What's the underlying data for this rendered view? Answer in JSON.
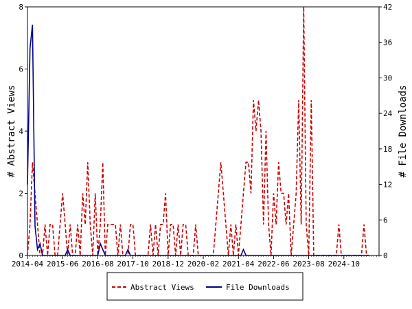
{
  "chart_data": {
    "type": "line",
    "title": "",
    "xlabel": "",
    "ylabel": "# Abstract Views",
    "y2label": "# File Downloads",
    "ylim": [
      0,
      8
    ],
    "y2lim": [
      0,
      42
    ],
    "yticks": [
      0,
      2,
      4,
      6,
      8
    ],
    "y2ticks": [
      0,
      6,
      12,
      18,
      24,
      30,
      36,
      42
    ],
    "x_start": "2014-04",
    "x_end": "2025-12",
    "xticks": [
      "2014-04",
      "2015-06",
      "2016-08",
      "2017-10",
      "2018-12",
      "2020-02",
      "2021-04",
      "2022-06",
      "2023-08",
      "2024-10"
    ],
    "grid": false,
    "legend_position": "bottom",
    "series": [
      {
        "name": "Abstract Views",
        "color": "#cc0000",
        "style": "dashed",
        "axis": "left",
        "points": [
          [
            "2014-04",
            0
          ],
          [
            "2014-05",
            1
          ],
          [
            "2014-06",
            3
          ],
          [
            "2014-07",
            2
          ],
          [
            "2014-08",
            1
          ],
          [
            "2014-09",
            0
          ],
          [
            "2014-10",
            0
          ],
          [
            "2014-11",
            1
          ],
          [
            "2014-12",
            0
          ],
          [
            "2015-01",
            1
          ],
          [
            "2015-02",
            1
          ],
          [
            "2015-03",
            0
          ],
          [
            "2015-04",
            0
          ],
          [
            "2015-05",
            1
          ],
          [
            "2015-06",
            2
          ],
          [
            "2015-07",
            1
          ],
          [
            "2015-08",
            0
          ],
          [
            "2015-09",
            1
          ],
          [
            "2015-10",
            0
          ],
          [
            "2015-11",
            0
          ],
          [
            "2015-12",
            1
          ],
          [
            "2016-01",
            0
          ],
          [
            "2016-02",
            2
          ],
          [
            "2016-03",
            1
          ],
          [
            "2016-04",
            3
          ],
          [
            "2016-05",
            1
          ],
          [
            "2016-06",
            0
          ],
          [
            "2016-07",
            2
          ],
          [
            "2016-08",
            0
          ],
          [
            "2016-09",
            1
          ],
          [
            "2016-10",
            3
          ],
          [
            "2016-11",
            0
          ],
          [
            "2016-12",
            1
          ],
          [
            "2017-01",
            1
          ],
          [
            "2017-02",
            1
          ],
          [
            "2017-03",
            1
          ],
          [
            "2017-04",
            0
          ],
          [
            "2017-05",
            1
          ],
          [
            "2017-06",
            0
          ],
          [
            "2017-07",
            0
          ],
          [
            "2017-08",
            0
          ],
          [
            "2017-09",
            1
          ],
          [
            "2017-10",
            1
          ],
          [
            "2017-11",
            0
          ],
          [
            "2017-12",
            0
          ],
          [
            "2018-01",
            0
          ],
          [
            "2018-02",
            0
          ],
          [
            "2018-03",
            0
          ],
          [
            "2018-04",
            0
          ],
          [
            "2018-05",
            1
          ],
          [
            "2018-06",
            0
          ],
          [
            "2018-07",
            1
          ],
          [
            "2018-08",
            0
          ],
          [
            "2018-09",
            1
          ],
          [
            "2018-10",
            1
          ],
          [
            "2018-11",
            2
          ],
          [
            "2018-12",
            0
          ],
          [
            "2019-01",
            1
          ],
          [
            "2019-02",
            1
          ],
          [
            "2019-03",
            0
          ],
          [
            "2019-04",
            1
          ],
          [
            "2019-05",
            0
          ],
          [
            "2019-06",
            1
          ],
          [
            "2019-07",
            1
          ],
          [
            "2019-08",
            0
          ],
          [
            "2019-09",
            0
          ],
          [
            "2019-10",
            0
          ],
          [
            "2019-11",
            1
          ],
          [
            "2019-12",
            0
          ],
          [
            "2020-01",
            0
          ],
          [
            "2020-02",
            0
          ],
          [
            "2020-03",
            0
          ],
          [
            "2020-04",
            0
          ],
          [
            "2020-05",
            0
          ],
          [
            "2020-06",
            0
          ],
          [
            "2020-07",
            1
          ],
          [
            "2020-08",
            2
          ],
          [
            "2020-09",
            3
          ],
          [
            "2020-10",
            2
          ],
          [
            "2020-11",
            1
          ],
          [
            "2020-12",
            0
          ],
          [
            "2021-01",
            1
          ],
          [
            "2021-02",
            0
          ],
          [
            "2021-03",
            1
          ],
          [
            "2021-04",
            0
          ],
          [
            "2021-05",
            1
          ],
          [
            "2021-06",
            2
          ],
          [
            "2021-07",
            3
          ],
          [
            "2021-08",
            3
          ],
          [
            "2021-09",
            2
          ],
          [
            "2021-10",
            5
          ],
          [
            "2021-11",
            4
          ],
          [
            "2021-12",
            5
          ],
          [
            "2022-01",
            4
          ],
          [
            "2022-02",
            1
          ],
          [
            "2022-03",
            4
          ],
          [
            "2022-04",
            1
          ],
          [
            "2022-05",
            0
          ],
          [
            "2022-06",
            2
          ],
          [
            "2022-07",
            1
          ],
          [
            "2022-08",
            3
          ],
          [
            "2022-09",
            2
          ],
          [
            "2022-10",
            2
          ],
          [
            "2022-11",
            1
          ],
          [
            "2022-12",
            2
          ],
          [
            "2023-01",
            0
          ],
          [
            "2023-02",
            1
          ],
          [
            "2023-03",
            2
          ],
          [
            "2023-04",
            5
          ],
          [
            "2023-05",
            1
          ],
          [
            "2023-06",
            8
          ],
          [
            "2023-07",
            1
          ],
          [
            "2023-08",
            0
          ],
          [
            "2023-09",
            5
          ],
          [
            "2023-10",
            0
          ],
          [
            "2023-11",
            0
          ],
          [
            "2023-12",
            0
          ],
          [
            "2024-01",
            0
          ],
          [
            "2024-02",
            0
          ],
          [
            "2024-03",
            0
          ],
          [
            "2024-04",
            0
          ],
          [
            "2024-05",
            0
          ],
          [
            "2024-06",
            0
          ],
          [
            "2024-07",
            0
          ],
          [
            "2024-08",
            1
          ],
          [
            "2024-09",
            0
          ],
          [
            "2024-10",
            0
          ],
          [
            "2024-11",
            0
          ],
          [
            "2024-12",
            0
          ],
          [
            "2025-01",
            0
          ],
          [
            "2025-02",
            0
          ],
          [
            "2025-03",
            0
          ],
          [
            "2025-04",
            0
          ],
          [
            "2025-05",
            0
          ],
          [
            "2025-06",
            1
          ],
          [
            "2025-07",
            0
          ],
          [
            "2025-08",
            0
          ]
        ]
      },
      {
        "name": "File Downloads",
        "color": "#00008b",
        "style": "solid",
        "axis": "right",
        "points": [
          [
            "2014-04",
            12
          ],
          [
            "2014-05",
            35
          ],
          [
            "2014-06",
            39
          ],
          [
            "2014-07",
            5
          ],
          [
            "2014-08",
            1
          ],
          [
            "2014-09",
            2
          ],
          [
            "2014-10",
            0
          ],
          [
            "2014-11",
            0
          ],
          [
            "2014-12",
            0
          ],
          [
            "2015-01",
            0
          ],
          [
            "2015-02",
            0
          ],
          [
            "2015-03",
            0
          ],
          [
            "2015-04",
            0
          ],
          [
            "2015-05",
            0
          ],
          [
            "2015-06",
            0
          ],
          [
            "2015-07",
            0
          ],
          [
            "2015-08",
            1
          ],
          [
            "2015-09",
            0
          ],
          [
            "2015-10",
            0
          ],
          [
            "2015-11",
            0
          ],
          [
            "2015-12",
            0
          ],
          [
            "2016-01",
            0
          ],
          [
            "2016-02",
            0
          ],
          [
            "2016-03",
            0
          ],
          [
            "2016-04",
            0
          ],
          [
            "2016-05",
            0
          ],
          [
            "2016-06",
            0
          ],
          [
            "2016-07",
            0
          ],
          [
            "2016-08",
            0
          ],
          [
            "2016-09",
            2
          ],
          [
            "2016-10",
            1
          ],
          [
            "2016-11",
            0
          ],
          [
            "2016-12",
            0
          ],
          [
            "2017-01",
            0
          ],
          [
            "2017-02",
            0
          ],
          [
            "2017-03",
            0
          ],
          [
            "2017-04",
            0
          ],
          [
            "2017-05",
            0
          ],
          [
            "2017-06",
            0
          ],
          [
            "2017-07",
            0
          ],
          [
            "2017-08",
            1
          ],
          [
            "2017-09",
            0
          ],
          [
            "2017-10",
            0
          ],
          [
            "2017-11",
            0
          ],
          [
            "2017-12",
            0
          ],
          [
            "2018-01",
            0
          ],
          [
            "2021-04",
            0
          ],
          [
            "2021-05",
            0
          ],
          [
            "2021-06",
            1
          ],
          [
            "2021-07",
            0
          ],
          [
            "2021-08",
            0
          ],
          [
            "2025-08",
            0
          ]
        ]
      }
    ]
  }
}
